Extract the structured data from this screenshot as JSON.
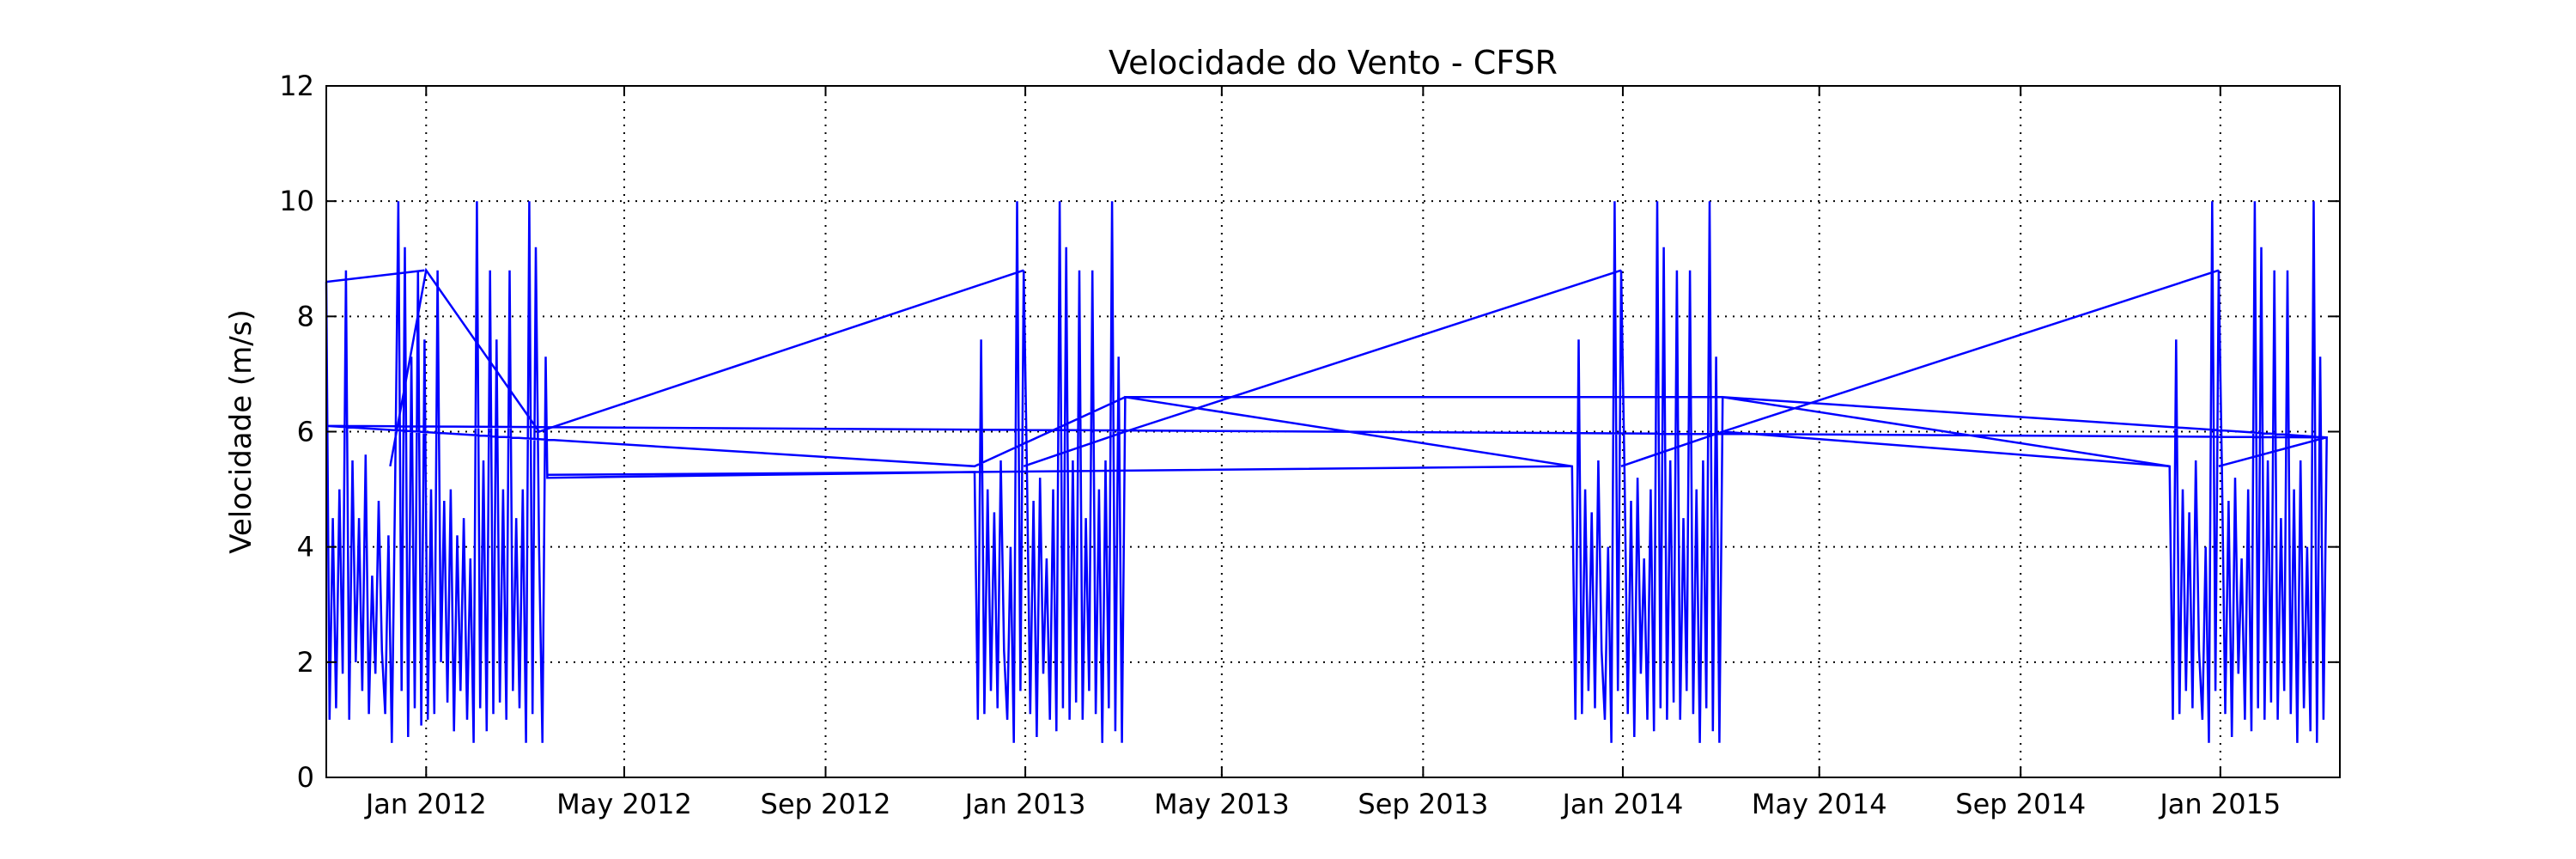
{
  "chart_data": {
    "type": "line",
    "title": "Velocidade do Vento - CFSR",
    "xlabel": "",
    "ylabel": "Velocidade (m/s)",
    "xlim": [
      "2011-11-01",
      "2015-03-15"
    ],
    "ylim": [
      0,
      12
    ],
    "yticks": [
      0,
      2,
      4,
      6,
      8,
      10,
      12
    ],
    "xticks": [
      {
        "date": "2012-01-01",
        "label": "Jan 2012"
      },
      {
        "date": "2012-05-01",
        "label": "May 2012"
      },
      {
        "date": "2012-09-01",
        "label": "Sep 2012"
      },
      {
        "date": "2013-01-01",
        "label": "Jan 2013"
      },
      {
        "date": "2013-05-01",
        "label": "May 2013"
      },
      {
        "date": "2013-09-01",
        "label": "Sep 2013"
      },
      {
        "date": "2014-01-01",
        "label": "Jan 2014"
      },
      {
        "date": "2014-05-01",
        "label": "May 2014"
      },
      {
        "date": "2014-09-01",
        "label": "Sep 2014"
      },
      {
        "date": "2015-01-01",
        "label": "Jan 2015"
      }
    ],
    "grid": true,
    "legend": "none",
    "line_color": "#0000ff",
    "series": [
      {
        "values": [
          [
            "2011-11-01",
            8.6
          ],
          [
            "2011-11-03",
            1.0
          ],
          [
            "2011-11-05",
            4.5
          ],
          [
            "2011-11-07",
            1.2
          ],
          [
            "2011-11-09",
            5.0
          ],
          [
            "2011-11-11",
            1.8
          ],
          [
            "2011-11-13",
            8.8
          ],
          [
            "2011-11-15",
            1.0
          ],
          [
            "2011-11-17",
            5.5
          ],
          [
            "2011-11-19",
            2.0
          ],
          [
            "2011-11-21",
            4.5
          ],
          [
            "2011-11-23",
            1.5
          ],
          [
            "2011-11-25",
            5.6
          ],
          [
            "2011-11-27",
            1.1
          ],
          [
            "2011-11-29",
            3.5
          ],
          [
            "2011-12-01",
            1.8
          ],
          [
            "2011-12-03",
            4.8
          ],
          [
            "2011-12-05",
            2.2
          ],
          [
            "2011-12-07",
            1.1
          ],
          [
            "2011-12-09",
            4.2
          ],
          [
            "2011-12-11",
            0.6
          ],
          [
            "2011-12-13",
            5.0
          ],
          [
            "2011-12-15",
            10.0
          ],
          [
            "2011-12-17",
            1.5
          ],
          [
            "2011-12-19",
            9.2
          ],
          [
            "2011-12-21",
            0.7
          ],
          [
            "2011-12-23",
            7.3
          ],
          [
            "2011-12-25",
            1.2
          ],
          [
            "2011-12-27",
            8.8
          ],
          [
            "2011-12-29",
            0.9
          ],
          [
            "2011-12-31",
            7.6
          ],
          [
            "2012-01-02",
            1.0
          ],
          [
            "2012-01-04",
            5.0
          ],
          [
            "2012-01-06",
            1.1
          ],
          [
            "2012-01-08",
            8.8
          ],
          [
            "2012-01-10",
            2.0
          ],
          [
            "2012-01-12",
            4.8
          ],
          [
            "2012-01-14",
            1.3
          ],
          [
            "2012-01-16",
            5.0
          ],
          [
            "2012-01-18",
            0.8
          ],
          [
            "2012-01-20",
            4.2
          ],
          [
            "2012-01-22",
            1.5
          ],
          [
            "2012-01-24",
            4.5
          ],
          [
            "2012-01-26",
            1.0
          ],
          [
            "2012-01-28",
            3.8
          ],
          [
            "2012-01-30",
            0.6
          ],
          [
            "2012-02-01",
            10.0
          ],
          [
            "2012-02-03",
            1.2
          ],
          [
            "2012-02-05",
            5.5
          ],
          [
            "2012-02-07",
            0.8
          ],
          [
            "2012-02-09",
            8.8
          ],
          [
            "2012-02-11",
            1.1
          ],
          [
            "2012-02-13",
            7.6
          ],
          [
            "2012-02-15",
            1.3
          ],
          [
            "2012-02-17",
            5.0
          ],
          [
            "2012-02-19",
            1.0
          ],
          [
            "2012-02-21",
            8.8
          ],
          [
            "2012-02-23",
            1.5
          ],
          [
            "2012-02-25",
            4.5
          ],
          [
            "2012-02-27",
            1.2
          ],
          [
            "2012-02-29",
            5.0
          ],
          [
            "2012-03-02",
            0.6
          ],
          [
            "2012-03-04",
            10.0
          ],
          [
            "2012-03-06",
            1.1
          ],
          [
            "2012-03-08",
            9.2
          ],
          [
            "2012-03-10",
            4.0
          ],
          [
            "2012-03-12",
            0.6
          ],
          [
            "2012-03-14",
            7.3
          ],
          [
            "2012-03-15",
            5.2
          ],
          [
            "2012-12-01",
            5.3
          ],
          [
            "2012-12-03",
            1.0
          ],
          [
            "2012-12-05",
            7.6
          ],
          [
            "2012-12-07",
            1.1
          ],
          [
            "2012-12-09",
            5.0
          ],
          [
            "2012-12-11",
            1.5
          ],
          [
            "2012-12-13",
            4.6
          ],
          [
            "2012-12-15",
            1.2
          ],
          [
            "2012-12-17",
            5.5
          ],
          [
            "2012-12-19",
            2.2
          ],
          [
            "2012-12-21",
            1.0
          ],
          [
            "2012-12-23",
            4.0
          ],
          [
            "2012-12-25",
            0.6
          ],
          [
            "2012-12-27",
            10.0
          ],
          [
            "2012-12-29",
            1.5
          ],
          [
            "2012-12-31",
            8.8
          ],
          [
            "2013-01-02",
            5.3
          ],
          [
            "2013-01-04",
            1.1
          ],
          [
            "2013-01-06",
            4.8
          ],
          [
            "2013-01-08",
            0.7
          ],
          [
            "2013-01-10",
            5.2
          ],
          [
            "2013-01-12",
            1.8
          ],
          [
            "2013-01-14",
            3.8
          ],
          [
            "2013-01-16",
            1.0
          ],
          [
            "2013-01-18",
            5.0
          ],
          [
            "2013-01-20",
            0.8
          ],
          [
            "2013-01-22",
            10.0
          ],
          [
            "2013-01-24",
            1.2
          ],
          [
            "2013-01-26",
            9.2
          ],
          [
            "2013-01-28",
            1.0
          ],
          [
            "2013-01-30",
            5.5
          ],
          [
            "2013-02-01",
            1.3
          ],
          [
            "2013-02-03",
            8.8
          ],
          [
            "2013-02-05",
            1.0
          ],
          [
            "2013-02-07",
            4.5
          ],
          [
            "2013-02-09",
            1.5
          ],
          [
            "2013-02-11",
            8.8
          ],
          [
            "2013-02-13",
            1.1
          ],
          [
            "2013-02-15",
            5.0
          ],
          [
            "2013-02-17",
            0.6
          ],
          [
            "2013-02-19",
            5.5
          ],
          [
            "2013-02-21",
            1.2
          ],
          [
            "2013-02-23",
            10.0
          ],
          [
            "2013-02-25",
            0.8
          ],
          [
            "2013-02-27",
            7.3
          ],
          [
            "2013-03-01",
            0.6
          ],
          [
            "2013-03-03",
            6.6
          ],
          [
            "2013-12-01",
            5.4
          ],
          [
            "2013-12-03",
            1.0
          ],
          [
            "2013-12-05",
            7.6
          ],
          [
            "2013-12-07",
            1.1
          ],
          [
            "2013-12-09",
            5.0
          ],
          [
            "2013-12-11",
            1.5
          ],
          [
            "2013-12-13",
            4.6
          ],
          [
            "2013-12-15",
            1.2
          ],
          [
            "2013-12-17",
            5.5
          ],
          [
            "2013-12-19",
            2.2
          ],
          [
            "2013-12-21",
            1.0
          ],
          [
            "2013-12-23",
            4.0
          ],
          [
            "2013-12-25",
            0.6
          ],
          [
            "2013-12-27",
            10.0
          ],
          [
            "2013-12-29",
            1.5
          ],
          [
            "2013-12-31",
            8.8
          ],
          [
            "2014-01-02",
            5.3
          ],
          [
            "2014-01-04",
            1.1
          ],
          [
            "2014-01-06",
            4.8
          ],
          [
            "2014-01-08",
            0.7
          ],
          [
            "2014-01-10",
            5.2
          ],
          [
            "2014-01-12",
            1.8
          ],
          [
            "2014-01-14",
            3.8
          ],
          [
            "2014-01-16",
            1.0
          ],
          [
            "2014-01-18",
            5.0
          ],
          [
            "2014-01-20",
            0.8
          ],
          [
            "2014-01-22",
            10.0
          ],
          [
            "2014-01-24",
            1.2
          ],
          [
            "2014-01-26",
            9.2
          ],
          [
            "2014-01-28",
            1.0
          ],
          [
            "2014-01-30",
            5.5
          ],
          [
            "2014-02-01",
            1.3
          ],
          [
            "2014-02-03",
            8.8
          ],
          [
            "2014-02-05",
            1.0
          ],
          [
            "2014-02-07",
            4.5
          ],
          [
            "2014-02-09",
            1.5
          ],
          [
            "2014-02-11",
            8.8
          ],
          [
            "2014-02-13",
            1.1
          ],
          [
            "2014-02-15",
            5.0
          ],
          [
            "2014-02-17",
            0.6
          ],
          [
            "2014-02-19",
            5.5
          ],
          [
            "2014-02-21",
            1.2
          ],
          [
            "2014-02-23",
            10.0
          ],
          [
            "2014-02-25",
            0.8
          ],
          [
            "2014-02-27",
            7.3
          ],
          [
            "2014-03-01",
            0.6
          ],
          [
            "2014-03-03",
            6.6
          ],
          [
            "2014-12-01",
            5.4
          ],
          [
            "2014-12-03",
            1.0
          ],
          [
            "2014-12-05",
            7.6
          ],
          [
            "2014-12-07",
            1.1
          ],
          [
            "2014-12-09",
            5.0
          ],
          [
            "2014-12-11",
            1.5
          ],
          [
            "2014-12-13",
            4.6
          ],
          [
            "2014-12-15",
            1.2
          ],
          [
            "2014-12-17",
            5.5
          ],
          [
            "2014-12-19",
            2.2
          ],
          [
            "2014-12-21",
            1.0
          ],
          [
            "2014-12-23",
            4.0
          ],
          [
            "2014-12-25",
            0.6
          ],
          [
            "2014-12-27",
            10.0
          ],
          [
            "2014-12-29",
            1.5
          ],
          [
            "2014-12-31",
            8.8
          ],
          [
            "2015-01-02",
            5.3
          ],
          [
            "2015-01-04",
            1.1
          ],
          [
            "2015-01-06",
            4.8
          ],
          [
            "2015-01-08",
            0.7
          ],
          [
            "2015-01-10",
            5.2
          ],
          [
            "2015-01-12",
            1.8
          ],
          [
            "2015-01-14",
            3.8
          ],
          [
            "2015-01-16",
            1.0
          ],
          [
            "2015-01-18",
            5.0
          ],
          [
            "2015-01-20",
            0.8
          ],
          [
            "2015-01-22",
            10.0
          ],
          [
            "2015-01-24",
            1.2
          ],
          [
            "2015-01-26",
            9.2
          ],
          [
            "2015-01-28",
            1.0
          ],
          [
            "2015-01-30",
            5.5
          ],
          [
            "2015-02-01",
            1.3
          ],
          [
            "2015-02-03",
            8.8
          ],
          [
            "2015-02-05",
            1.0
          ],
          [
            "2015-02-07",
            4.5
          ],
          [
            "2015-02-09",
            1.5
          ],
          [
            "2015-02-11",
            8.8
          ],
          [
            "2015-02-13",
            1.1
          ],
          [
            "2015-02-15",
            5.0
          ],
          [
            "2015-02-17",
            0.6
          ],
          [
            "2015-02-19",
            5.5
          ],
          [
            "2015-02-21",
            1.2
          ],
          [
            "2015-02-23",
            4.0
          ],
          [
            "2015-02-25",
            0.8
          ],
          [
            "2015-02-27",
            10.0
          ],
          [
            "2015-03-01",
            0.6
          ],
          [
            "2015-03-03",
            7.3
          ],
          [
            "2015-03-05",
            1.0
          ],
          [
            "2015-03-07",
            5.9
          ],
          [
            "2011-11-01",
            6.1
          ],
          [
            "2012-12-01",
            5.4
          ],
          [
            "2013-03-03",
            6.6
          ],
          [
            "2014-03-03",
            6.6
          ],
          [
            "2015-03-07",
            5.9
          ]
        ]
      },
      {
        "values": [
          [
            "2011-12-10",
            5.4
          ],
          [
            "2012-01-01",
            8.8
          ],
          [
            "2012-03-10",
            6.0
          ],
          [
            "2012-12-31",
            8.8
          ]
        ]
      },
      {
        "values": [
          [
            "2011-11-01",
            8.6
          ],
          [
            "2011-12-31",
            8.8
          ]
        ]
      },
      {
        "values": [
          [
            "2012-03-15",
            5.25
          ],
          [
            "2012-12-01",
            5.3
          ],
          [
            "2013-12-01",
            5.4
          ]
        ]
      },
      {
        "values": [
          [
            "2012-12-31",
            5.4
          ],
          [
            "2013-03-03",
            6.0
          ],
          [
            "2013-12-31",
            8.8
          ]
        ]
      },
      {
        "values": [
          [
            "2013-12-31",
            5.4
          ],
          [
            "2014-03-03",
            6.0
          ],
          [
            "2014-12-31",
            8.8
          ]
        ]
      },
      {
        "values": [
          [
            "2014-03-03",
            6.0
          ],
          [
            "2014-12-01",
            5.4
          ]
        ]
      },
      {
        "values": [
          [
            "2014-12-31",
            5.4
          ],
          [
            "2015-03-07",
            5.9
          ]
        ]
      }
    ]
  }
}
